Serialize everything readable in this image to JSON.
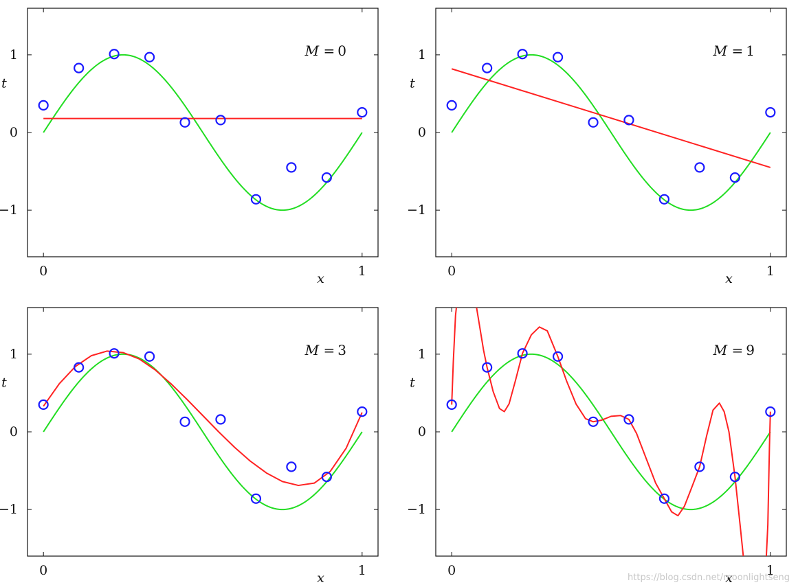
{
  "chart_data": [
    {
      "type": "line",
      "annotation": {
        "var": "M",
        "eq": "=",
        "val": "0"
      },
      "xlabel": "x",
      "ylabel": "t",
      "xlim": [
        -0.05,
        1.05
      ],
      "ylim": [
        -1.6,
        1.6
      ],
      "xticks": [
        "0",
        "1"
      ],
      "yticks": [
        "−1",
        "0",
        "1"
      ],
      "series": [
        {
          "role": "data",
          "color": "#1a1aff",
          "x": [
            0.0,
            0.111,
            0.222,
            0.333,
            0.444,
            0.556,
            0.667,
            0.778,
            0.889,
            1.0
          ],
          "y": [
            0.35,
            0.83,
            1.01,
            0.97,
            0.13,
            0.16,
            -0.86,
            -0.45,
            -0.58,
            0.26
          ]
        },
        {
          "role": "fit",
          "color": "#ff2222",
          "x": [
            0.0,
            1.0
          ],
          "y": [
            0.18,
            0.18
          ]
        }
      ]
    },
    {
      "type": "line",
      "annotation": {
        "var": "M",
        "eq": "=",
        "val": "1"
      },
      "xlabel": "x",
      "ylabel": "t",
      "xlim": [
        -0.05,
        1.05
      ],
      "ylim": [
        -1.6,
        1.6
      ],
      "xticks": [
        "0",
        "1"
      ],
      "yticks": [
        "−1",
        "0",
        "1"
      ],
      "series": [
        {
          "role": "data",
          "color": "#1a1aff",
          "x": [
            0.0,
            0.111,
            0.222,
            0.333,
            0.444,
            0.556,
            0.667,
            0.778,
            0.889,
            1.0
          ],
          "y": [
            0.35,
            0.83,
            1.01,
            0.97,
            0.13,
            0.16,
            -0.86,
            -0.45,
            -0.58,
            0.26
          ]
        },
        {
          "role": "fit",
          "color": "#ff2222",
          "x": [
            0.0,
            1.0
          ],
          "y": [
            0.82,
            -0.45
          ]
        }
      ]
    },
    {
      "type": "line",
      "annotation": {
        "var": "M",
        "eq": "=",
        "val": "3"
      },
      "xlabel": "x",
      "ylabel": "t",
      "xlim": [
        -0.05,
        1.05
      ],
      "ylim": [
        -1.6,
        1.6
      ],
      "xticks": [
        "0",
        "1"
      ],
      "yticks": [
        "−1",
        "0",
        "1"
      ],
      "series": [
        {
          "role": "data",
          "color": "#1a1aff",
          "x": [
            0.0,
            0.111,
            0.222,
            0.333,
            0.444,
            0.556,
            0.667,
            0.778,
            0.889,
            1.0
          ],
          "y": [
            0.35,
            0.83,
            1.01,
            0.97,
            0.13,
            0.16,
            -0.86,
            -0.45,
            -0.58,
            0.26
          ]
        },
        {
          "role": "fit",
          "color": "#ff2222",
          "x": [
            0.0,
            0.05,
            0.1,
            0.15,
            0.2,
            0.25,
            0.3,
            0.35,
            0.4,
            0.45,
            0.5,
            0.55,
            0.6,
            0.65,
            0.7,
            0.75,
            0.8,
            0.85,
            0.9,
            0.95,
            1.0
          ],
          "y": [
            0.33,
            0.62,
            0.84,
            0.98,
            1.04,
            1.02,
            0.94,
            0.8,
            0.62,
            0.42,
            0.21,
            0.0,
            -0.2,
            -0.38,
            -0.53,
            -0.64,
            -0.69,
            -0.66,
            -0.51,
            -0.21,
            0.25
          ]
        }
      ]
    },
    {
      "type": "line",
      "annotation": {
        "var": "M",
        "eq": "=",
        "val": "9"
      },
      "xlabel": "x",
      "ylabel": "t",
      "xlim": [
        -0.05,
        1.05
      ],
      "ylim": [
        -1.6,
        1.6
      ],
      "xticks": [
        "0",
        "1"
      ],
      "yticks": [
        "−1",
        "0",
        "1"
      ],
      "series": [
        {
          "role": "data",
          "color": "#1a1aff",
          "x": [
            0.0,
            0.111,
            0.222,
            0.333,
            0.444,
            0.556,
            0.667,
            0.778,
            0.889,
            1.0
          ],
          "y": [
            0.35,
            0.83,
            1.01,
            0.97,
            0.13,
            0.16,
            -0.86,
            -0.45,
            -0.58,
            0.26
          ]
        },
        {
          "role": "fit",
          "color": "#ff2222",
          "x": [
            0.0,
            0.005,
            0.012,
            0.02,
            0.04,
            0.07,
            0.1,
            0.111,
            0.13,
            0.15,
            0.165,
            0.18,
            0.2,
            0.222,
            0.25,
            0.275,
            0.3,
            0.333,
            0.36,
            0.39,
            0.42,
            0.444,
            0.47,
            0.5,
            0.53,
            0.556,
            0.58,
            0.61,
            0.64,
            0.667,
            0.69,
            0.71,
            0.73,
            0.75,
            0.778,
            0.8,
            0.82,
            0.84,
            0.855,
            0.87,
            0.889,
            0.905,
            0.92,
            0.94,
            0.96,
            0.975,
            0.985,
            0.992,
            0.997,
            1.0
          ],
          "y": [
            0.35,
            0.9,
            1.5,
            1.8,
            1.8,
            1.8,
            1.05,
            0.83,
            0.52,
            0.3,
            0.26,
            0.36,
            0.66,
            1.01,
            1.25,
            1.35,
            1.3,
            0.97,
            0.66,
            0.36,
            0.17,
            0.13,
            0.15,
            0.2,
            0.21,
            0.16,
            -0.02,
            -0.34,
            -0.66,
            -0.86,
            -1.03,
            -1.08,
            -0.96,
            -0.75,
            -0.45,
            -0.05,
            0.28,
            0.37,
            0.26,
            0.0,
            -0.58,
            -1.2,
            -1.8,
            -1.8,
            -1.8,
            -1.8,
            -1.8,
            -1.2,
            -0.2,
            0.26
          ]
        }
      ]
    }
  ],
  "truth_curve": {
    "role": "truth",
    "color": "#22dd22"
  },
  "watermark": "https://blog.csdn.net/moonlightseng"
}
